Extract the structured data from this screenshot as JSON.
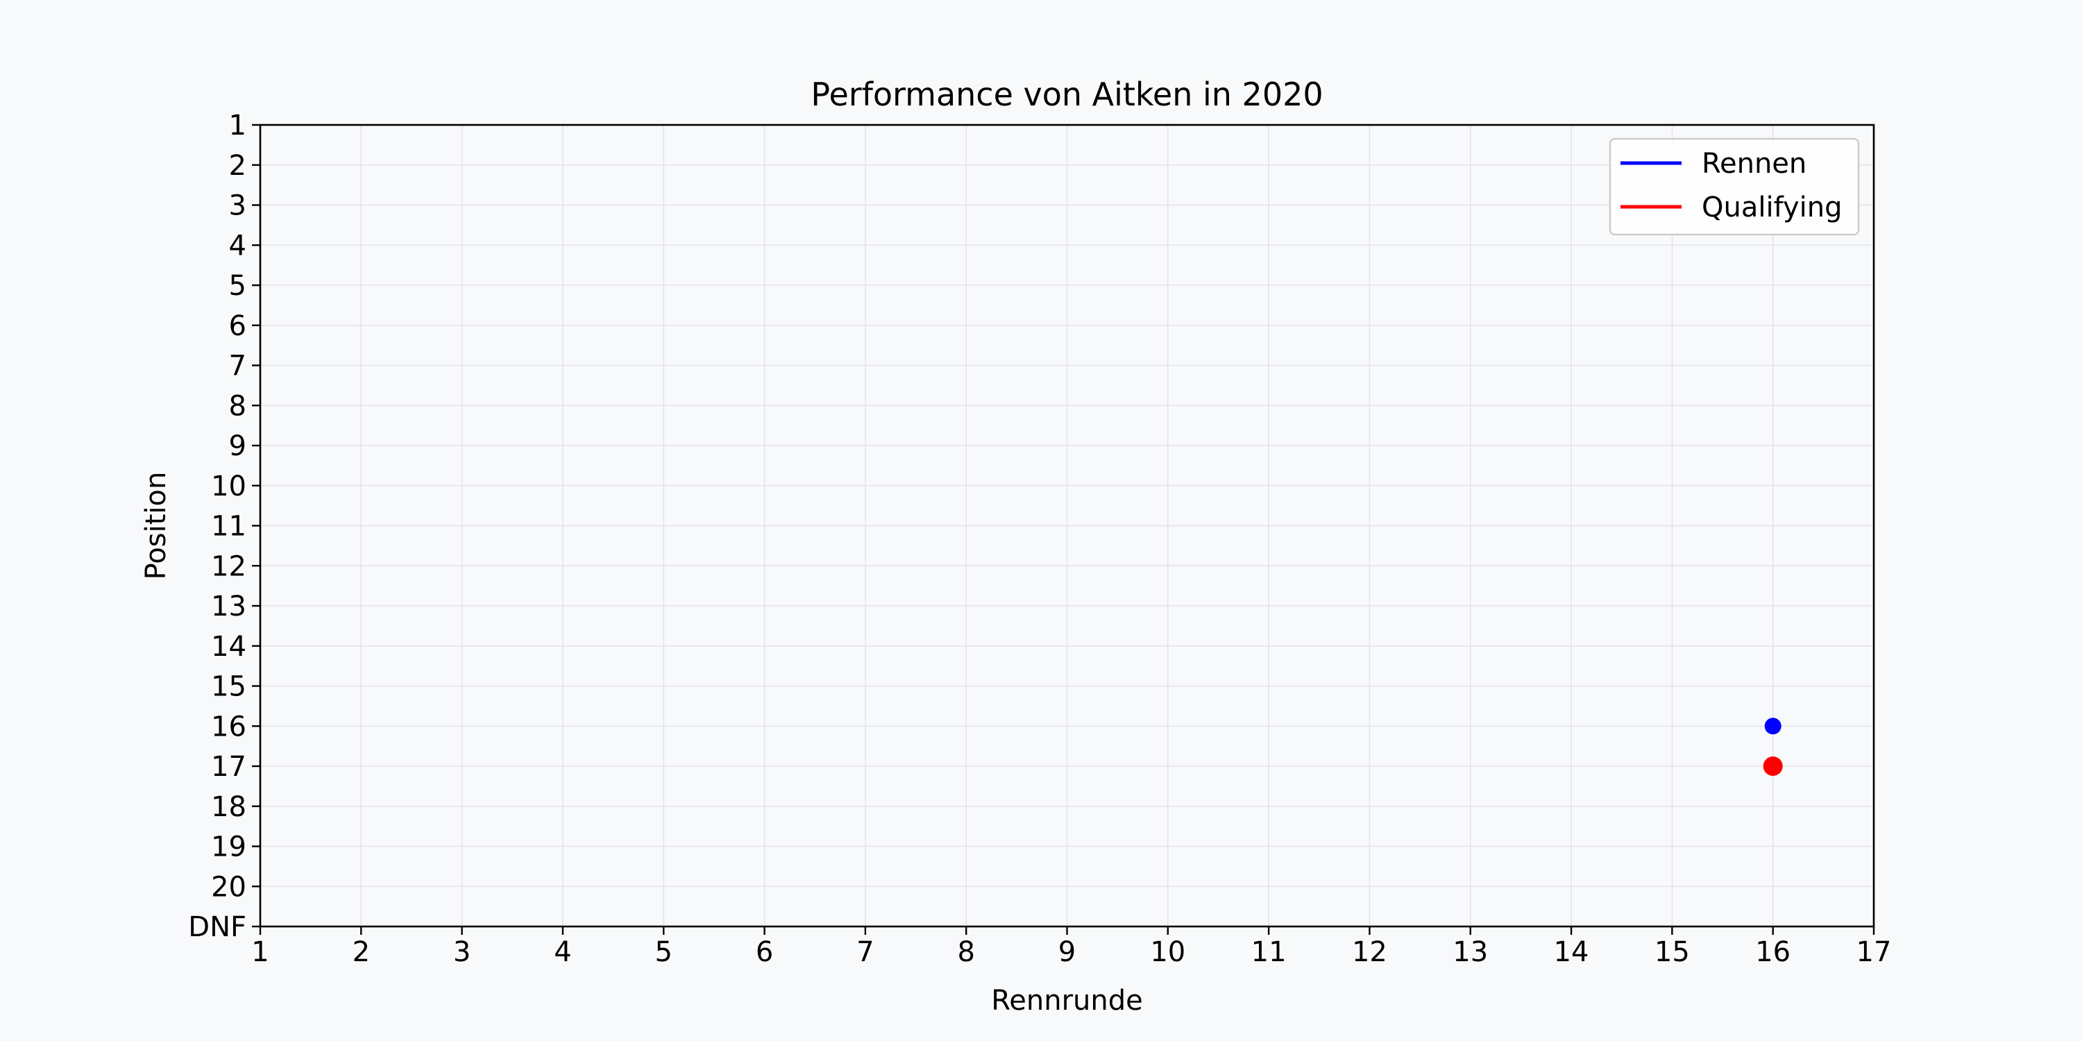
{
  "chart_data": {
    "type": "scatter",
    "title": "Performance von Aitken in 2020",
    "xlabel": "Rennrunde",
    "ylabel": "Position",
    "xlim": [
      1,
      17
    ],
    "x_ticks": [
      1,
      2,
      3,
      4,
      5,
      6,
      7,
      8,
      9,
      10,
      11,
      12,
      13,
      14,
      15,
      16,
      17
    ],
    "y_ticks": [
      {
        "value": 1,
        "label": "1"
      },
      {
        "value": 2,
        "label": "2"
      },
      {
        "value": 3,
        "label": "3"
      },
      {
        "value": 4,
        "label": "4"
      },
      {
        "value": 5,
        "label": "5"
      },
      {
        "value": 6,
        "label": "6"
      },
      {
        "value": 7,
        "label": "7"
      },
      {
        "value": 8,
        "label": "8"
      },
      {
        "value": 9,
        "label": "9"
      },
      {
        "value": 10,
        "label": "10"
      },
      {
        "value": 11,
        "label": "11"
      },
      {
        "value": 12,
        "label": "12"
      },
      {
        "value": 13,
        "label": "13"
      },
      {
        "value": 14,
        "label": "14"
      },
      {
        "value": 15,
        "label": "15"
      },
      {
        "value": 16,
        "label": "16"
      },
      {
        "value": 17,
        "label": "17"
      },
      {
        "value": 18,
        "label": "18"
      },
      {
        "value": 19,
        "label": "19"
      },
      {
        "value": 20,
        "label": "20"
      },
      {
        "value": 21,
        "label": "DNF"
      }
    ],
    "y_inverted": true,
    "ylim": [
      1,
      21
    ],
    "grid": true,
    "legend_position": "top-right",
    "series": [
      {
        "name": "Rennen",
        "color": "#0000ff",
        "points": [
          {
            "x": 16,
            "y": 16
          }
        ]
      },
      {
        "name": "Qualifying",
        "color": "#ff0000",
        "points": [
          {
            "x": 16,
            "y": 17
          }
        ]
      }
    ]
  }
}
